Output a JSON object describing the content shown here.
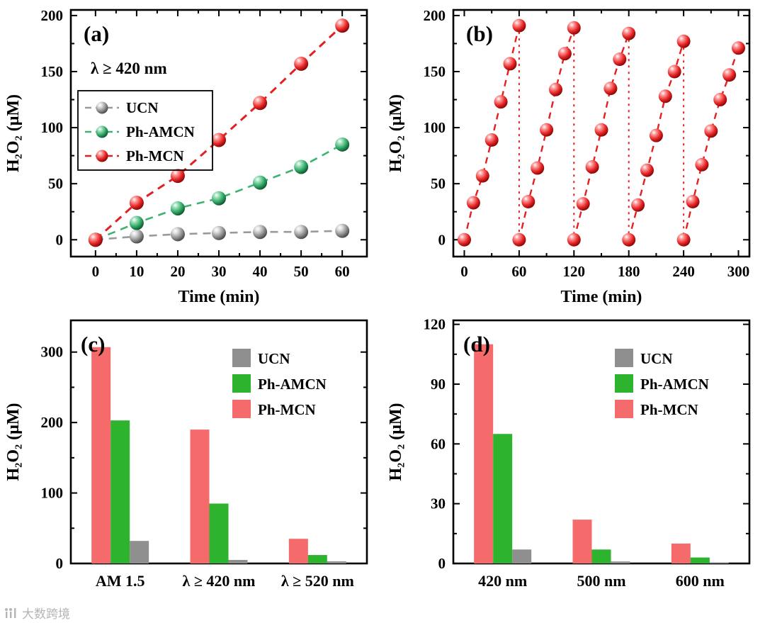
{
  "page": {
    "background": "#ffffff"
  },
  "watermark": {
    "text": "大数跨境",
    "icon": "grid-logo-icon"
  },
  "palette": {
    "red": "#e32020",
    "green": "#3eb273",
    "gray": "#9a9a9a",
    "bar_red": "#f56b6b",
    "bar_green": "#2db32d",
    "bar_gray": "#8f8f8f"
  },
  "chart_data": [
    {
      "id": "a",
      "type": "line",
      "panel_label": "(a)",
      "annotation": "λ ≥ 420 nm",
      "xlabel": "Time (min)",
      "ylabel": "H₂O₂ (μM)",
      "xlim": [
        -6,
        66
      ],
      "ylim": [
        -15,
        205
      ],
      "xticks": [
        0,
        10,
        20,
        30,
        40,
        50,
        60
      ],
      "yticks": [
        0,
        50,
        100,
        150,
        200
      ],
      "x": [
        0,
        10,
        20,
        30,
        40,
        50,
        60
      ],
      "series": [
        {
          "name": "UCN",
          "color": "gray",
          "values": [
            0,
            3,
            5,
            6,
            7,
            7,
            8
          ]
        },
        {
          "name": "Ph-AMCN",
          "color": "green",
          "values": [
            0,
            15,
            28,
            37,
            51,
            65,
            85
          ]
        },
        {
          "name": "Ph-MCN",
          "color": "red",
          "values": [
            0,
            33,
            57,
            89,
            122,
            157,
            191
          ]
        }
      ],
      "legend": {
        "order": [
          "UCN",
          "Ph-AMCN",
          "Ph-MCN"
        ],
        "boxed": true
      }
    },
    {
      "id": "b",
      "type": "cycles",
      "panel_label": "(b)",
      "xlabel": "Time (min)",
      "ylabel": "H₂O₂ (μM)",
      "xlim": [
        -12,
        312
      ],
      "ylim": [
        -15,
        205
      ],
      "xticks": [
        0,
        60,
        120,
        180,
        240,
        300
      ],
      "yticks": [
        0,
        50,
        100,
        150,
        200
      ],
      "cycle_starts": [
        0,
        60,
        120,
        180,
        240
      ],
      "step": 10,
      "color": "red",
      "cycles": [
        [
          0,
          33,
          57,
          89,
          123,
          157,
          191
        ],
        [
          0,
          34,
          64,
          98,
          134,
          166,
          189
        ],
        [
          0,
          32,
          65,
          98,
          135,
          161,
          184
        ],
        [
          0,
          31,
          62,
          93,
          128,
          150,
          177
        ],
        [
          0,
          34,
          67,
          97,
          125,
          147,
          171
        ]
      ]
    },
    {
      "id": "c",
      "type": "bar",
      "panel_label": "(c)",
      "ylabel": "H₂O₂ (μM)",
      "categories": [
        "AM 1.5",
        "λ ≥ 420 nm",
        "λ ≥ 520 nm"
      ],
      "ylim": [
        0,
        345
      ],
      "yticks": [
        0,
        100,
        200,
        300
      ],
      "series": [
        {
          "name": "Ph-MCN",
          "color": "bar_red",
          "values": [
            307,
            190,
            35
          ]
        },
        {
          "name": "Ph-AMCN",
          "color": "bar_green",
          "values": [
            203,
            85,
            12
          ]
        },
        {
          "name": "UCN",
          "color": "bar_gray",
          "values": [
            32,
            5,
            3
          ]
        }
      ],
      "legend_order": [
        "UCN",
        "Ph-AMCN",
        "Ph-MCN"
      ]
    },
    {
      "id": "d",
      "type": "bar",
      "panel_label": "(d)",
      "ylabel": "H₂O₂ (μM)",
      "categories": [
        "420 nm",
        "500 nm",
        "600 nm"
      ],
      "ylim": [
        0,
        122
      ],
      "yticks": [
        0,
        30,
        60,
        90,
        120
      ],
      "series": [
        {
          "name": "Ph-MCN",
          "color": "bar_red",
          "values": [
            110,
            22,
            10
          ]
        },
        {
          "name": "Ph-AMCN",
          "color": "bar_green",
          "values": [
            65,
            7,
            3
          ]
        },
        {
          "name": "UCN",
          "color": "bar_gray",
          "values": [
            7,
            1,
            0.5
          ]
        }
      ],
      "legend_order": [
        "UCN",
        "Ph-AMCN",
        "Ph-MCN"
      ]
    }
  ]
}
